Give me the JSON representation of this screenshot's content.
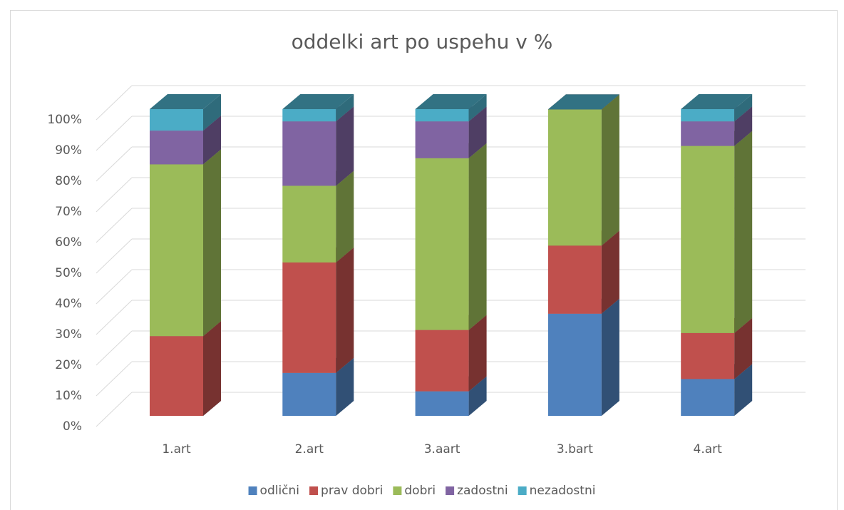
{
  "chart_data": {
    "type": "stacked_bar_3d",
    "title": "oddelki art po uspehu v %",
    "categories": [
      "1.art",
      "2.art",
      "3.aart",
      "3.bart",
      "4.art"
    ],
    "series": [
      {
        "name": "odlični",
        "color": "#4f81bd",
        "values": [
          0,
          14,
          8,
          33.3,
          12
        ]
      },
      {
        "name": "prav dobri",
        "color": "#c0504d",
        "values": [
          26,
          36,
          20,
          22.2,
          15
        ]
      },
      {
        "name": "dobri",
        "color": "#9bbb59",
        "values": [
          56,
          25,
          56,
          44.4,
          61
        ]
      },
      {
        "name": "zadostni",
        "color": "#8064a2",
        "values": [
          11,
          21,
          12,
          0,
          8
        ]
      },
      {
        "name": "nezadostni",
        "color": "#4bacc6",
        "values": [
          7,
          4,
          4,
          0,
          4
        ]
      }
    ],
    "ylim": [
      0,
      100
    ],
    "yticks": [
      {
        "value": 0,
        "label": "0%"
      },
      {
        "value": 10,
        "label": "10%"
      },
      {
        "value": 20,
        "label": "20%"
      },
      {
        "value": 30,
        "label": "30%"
      },
      {
        "value": 40,
        "label": "40%"
      },
      {
        "value": 50,
        "label": "50%"
      },
      {
        "value": 60,
        "label": "60%"
      },
      {
        "value": 70,
        "label": "70%"
      },
      {
        "value": 80,
        "label": "80%"
      },
      {
        "value": 90,
        "label": "90%"
      },
      {
        "value": 100,
        "label": "100%"
      }
    ],
    "grid": true,
    "legend": "bottom"
  }
}
